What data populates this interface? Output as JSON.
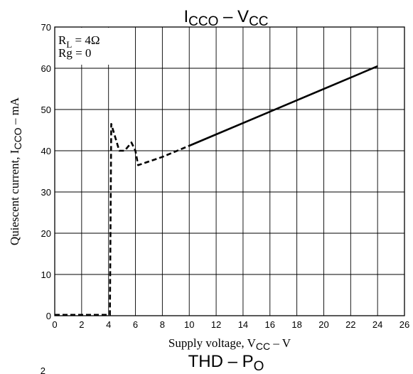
{
  "chart_data": {
    "type": "line",
    "title": {
      "main": "I",
      "sub": "CCO",
      "sep": " – V",
      "sub2": "CC"
    },
    "xlabel": {
      "pre": "Supply voltage, V",
      "sub": "CC",
      "post": " – V"
    },
    "ylabel": {
      "pre": "Quiescent current, I",
      "sub": "CCO",
      "post": " – mA"
    },
    "xlim": [
      0,
      26
    ],
    "ylim": [
      0,
      70
    ],
    "x_ticks": [
      0,
      2,
      4,
      6,
      8,
      10,
      12,
      14,
      16,
      18,
      20,
      22,
      24,
      26
    ],
    "y_ticks": [
      0,
      10,
      20,
      30,
      40,
      50,
      60,
      70
    ],
    "grid": true,
    "annotations": [
      {
        "pre": "R",
        "sub": "L",
        "post": " = 4Ω"
      },
      {
        "pre": "Rg = 0",
        "sub": "",
        "post": ""
      }
    ],
    "series": [
      {
        "style": "dashed",
        "points": [
          [
            0,
            0.2
          ],
          [
            4.1,
            0.2
          ],
          [
            4.2,
            46.5
          ],
          [
            4.8,
            40
          ],
          [
            5.2,
            40
          ],
          [
            5.7,
            42
          ],
          [
            6.0,
            40
          ],
          [
            6.2,
            36.5
          ],
          [
            8.0,
            38.5
          ],
          [
            10.0,
            41.2
          ]
        ]
      },
      {
        "style": "solid",
        "points": [
          [
            10.0,
            41.2
          ],
          [
            24.0,
            60.5
          ]
        ]
      }
    ],
    "next_title": {
      "main": "THD – P",
      "sub": "O"
    },
    "next_axis_fragment": "2"
  }
}
